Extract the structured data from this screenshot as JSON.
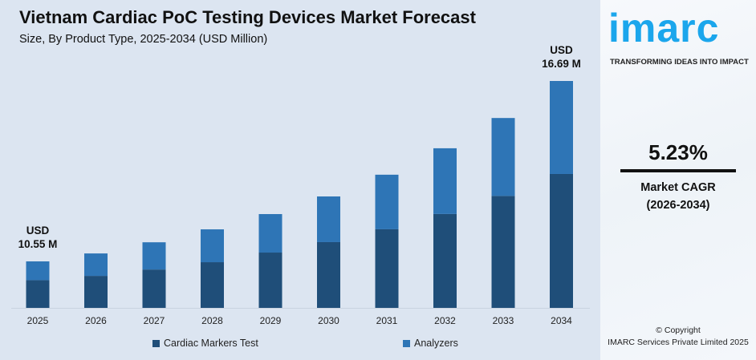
{
  "title": "Vietnam Cardiac PoC Testing Devices Market Forecast",
  "subtitle": "Size, By Product Type, 2025-2034 (USD Million)",
  "chart_data": {
    "type": "bar",
    "stacked": true,
    "categories": [
      "2025",
      "2026",
      "2027",
      "2028",
      "2029",
      "2030",
      "2031",
      "2032",
      "2033",
      "2034"
    ],
    "series": [
      {
        "name": "Cardiac Markers Test",
        "color": "#1f4e79",
        "values": [
          6.29,
          6.36,
          6.55,
          6.77,
          7.17,
          7.53,
          7.97,
          8.47,
          9.1,
          9.85
        ]
      },
      {
        "name": "Analyzers",
        "color": "#2e75b6",
        "values": [
          4.26,
          4.46,
          4.65,
          4.87,
          4.99,
          5.23,
          5.53,
          5.93,
          6.33,
          6.84
        ]
      }
    ],
    "totals": [
      10.55,
      10.82,
      11.2,
      11.64,
      12.16,
      12.76,
      13.5,
      14.4,
      15.43,
      16.69
    ],
    "annotations": [
      {
        "category": "2025",
        "line1": "USD",
        "line2": "10.55 M"
      },
      {
        "category": "2034",
        "line1": "USD",
        "line2": "16.69 M"
      }
    ],
    "legend_position": "bottom",
    "grid": false
  },
  "side": {
    "logo": "imarc",
    "tagline": "TRANSFORMING IDEAS INTO IMPACT",
    "cagr_value": "5.23%",
    "cagr_label": "Market CAGR",
    "cagr_period": "(2026-2034)",
    "copyright": "© Copyright",
    "company": "IMARC Services Private Limited 2025"
  }
}
